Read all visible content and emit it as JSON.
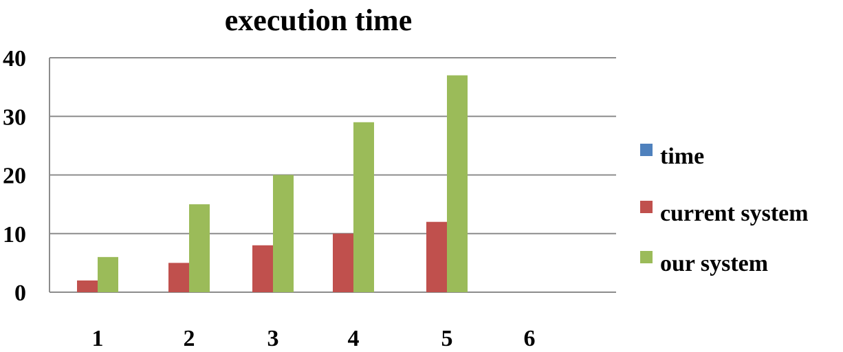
{
  "chart_data": {
    "type": "bar",
    "title": "execution time",
    "xlabel": "",
    "ylabel": "",
    "categories": [
      "1",
      "2",
      "3",
      "4",
      "5",
      "6"
    ],
    "ylim": [
      0,
      40
    ],
    "yticks": [
      "0",
      "10",
      "20",
      "30",
      "40"
    ],
    "grid": true,
    "legend_position": "right",
    "series": [
      {
        "name": "time",
        "color": "#4f81bd",
        "values": [
          null,
          null,
          null,
          null,
          null,
          null
        ]
      },
      {
        "name": "current system",
        "color": "#c0504d",
        "values": [
          2,
          5,
          8,
          10,
          12,
          null
        ]
      },
      {
        "name": "our system",
        "color": "#9bbb59",
        "values": [
          6,
          15,
          20,
          29,
          37,
          null
        ]
      }
    ]
  }
}
